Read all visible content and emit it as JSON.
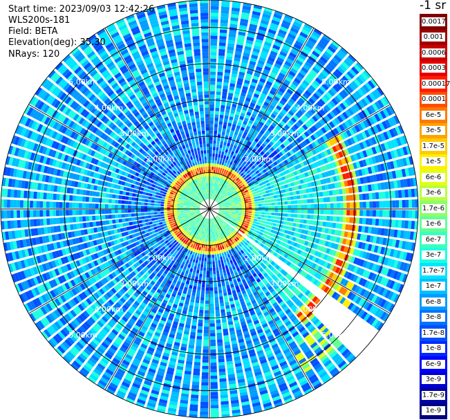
{
  "header": {
    "start_time": "Start time: 2023/09/03 12:42:26",
    "instrument": "WLS200s-181",
    "field": "Field: BETA",
    "elevation": "Elevation(deg): 35.30",
    "nrays": "NRays: 120"
  },
  "colorbar": {
    "unit_label": "-1 sr",
    "labels": [
      "0.0017",
      "0.001",
      "0.0006",
      "0.0003",
      "0.00017",
      "0.0001",
      "6e-5",
      "3e-5",
      "1.7e-5",
      "1e-5",
      "6e-6",
      "3e-6",
      "1.7e-6",
      "1e-6",
      "6e-7",
      "3e-7",
      "1.7e-7",
      "1e-7",
      "6e-8",
      "3e-8",
      "1.7e-8",
      "1e-8",
      "6e-9",
      "3e-9",
      "1.7e-9",
      "1e-9"
    ],
    "colors": [
      "#7f0000",
      "#a00000",
      "#c80000",
      "#e80000",
      "#ff1e00",
      "#ff4d00",
      "#ff7a00",
      "#ffa300",
      "#ffcc00",
      "#fff000",
      "#e2ff15",
      "#b8ff3e",
      "#8cff6a",
      "#62ff95",
      "#3cffbb",
      "#1dffe0",
      "#00e4ff",
      "#00c0ff",
      "#009cff",
      "#0074ff",
      "#0050ff",
      "#0028ff",
      "#0000ff",
      "#0000d2",
      "#0000a6",
      "#000080"
    ]
  },
  "chart_data": {
    "type": "ppi_scan",
    "title": "",
    "range_rings_km": [
      1,
      2,
      3,
      4,
      5
    ],
    "ring_labels": [
      "2.00km",
      "3.00km",
      "4.00km",
      "5.00km"
    ],
    "spokes_deg": [
      0,
      30,
      60,
      90,
      120,
      150,
      180,
      210,
      240,
      270,
      300,
      330
    ],
    "nrays": 120,
    "max_range_km": 5.75,
    "features": {
      "cloud_base_ring_km": 1.1,
      "cloud_arc_az_deg": [
        60,
        140
      ],
      "cloud_arc_range_km": 3.9,
      "cloud_patch_az_deg": [
        118,
        135
      ],
      "cloud_patch_range_km": [
        3.6,
        4.7
      ],
      "cloud_patch_2_az_deg": [
        136,
        150
      ],
      "cloud_patch_2_range_km": [
        4.4,
        5.2
      ],
      "blocked_sector_az_deg": [
        128,
        136
      ],
      "data_gap_az_deg": [
        [
          125,
          129
        ]
      ]
    },
    "colorbar": {
      "scale": "log",
      "min": "1e-9",
      "max": "0.0017"
    }
  }
}
